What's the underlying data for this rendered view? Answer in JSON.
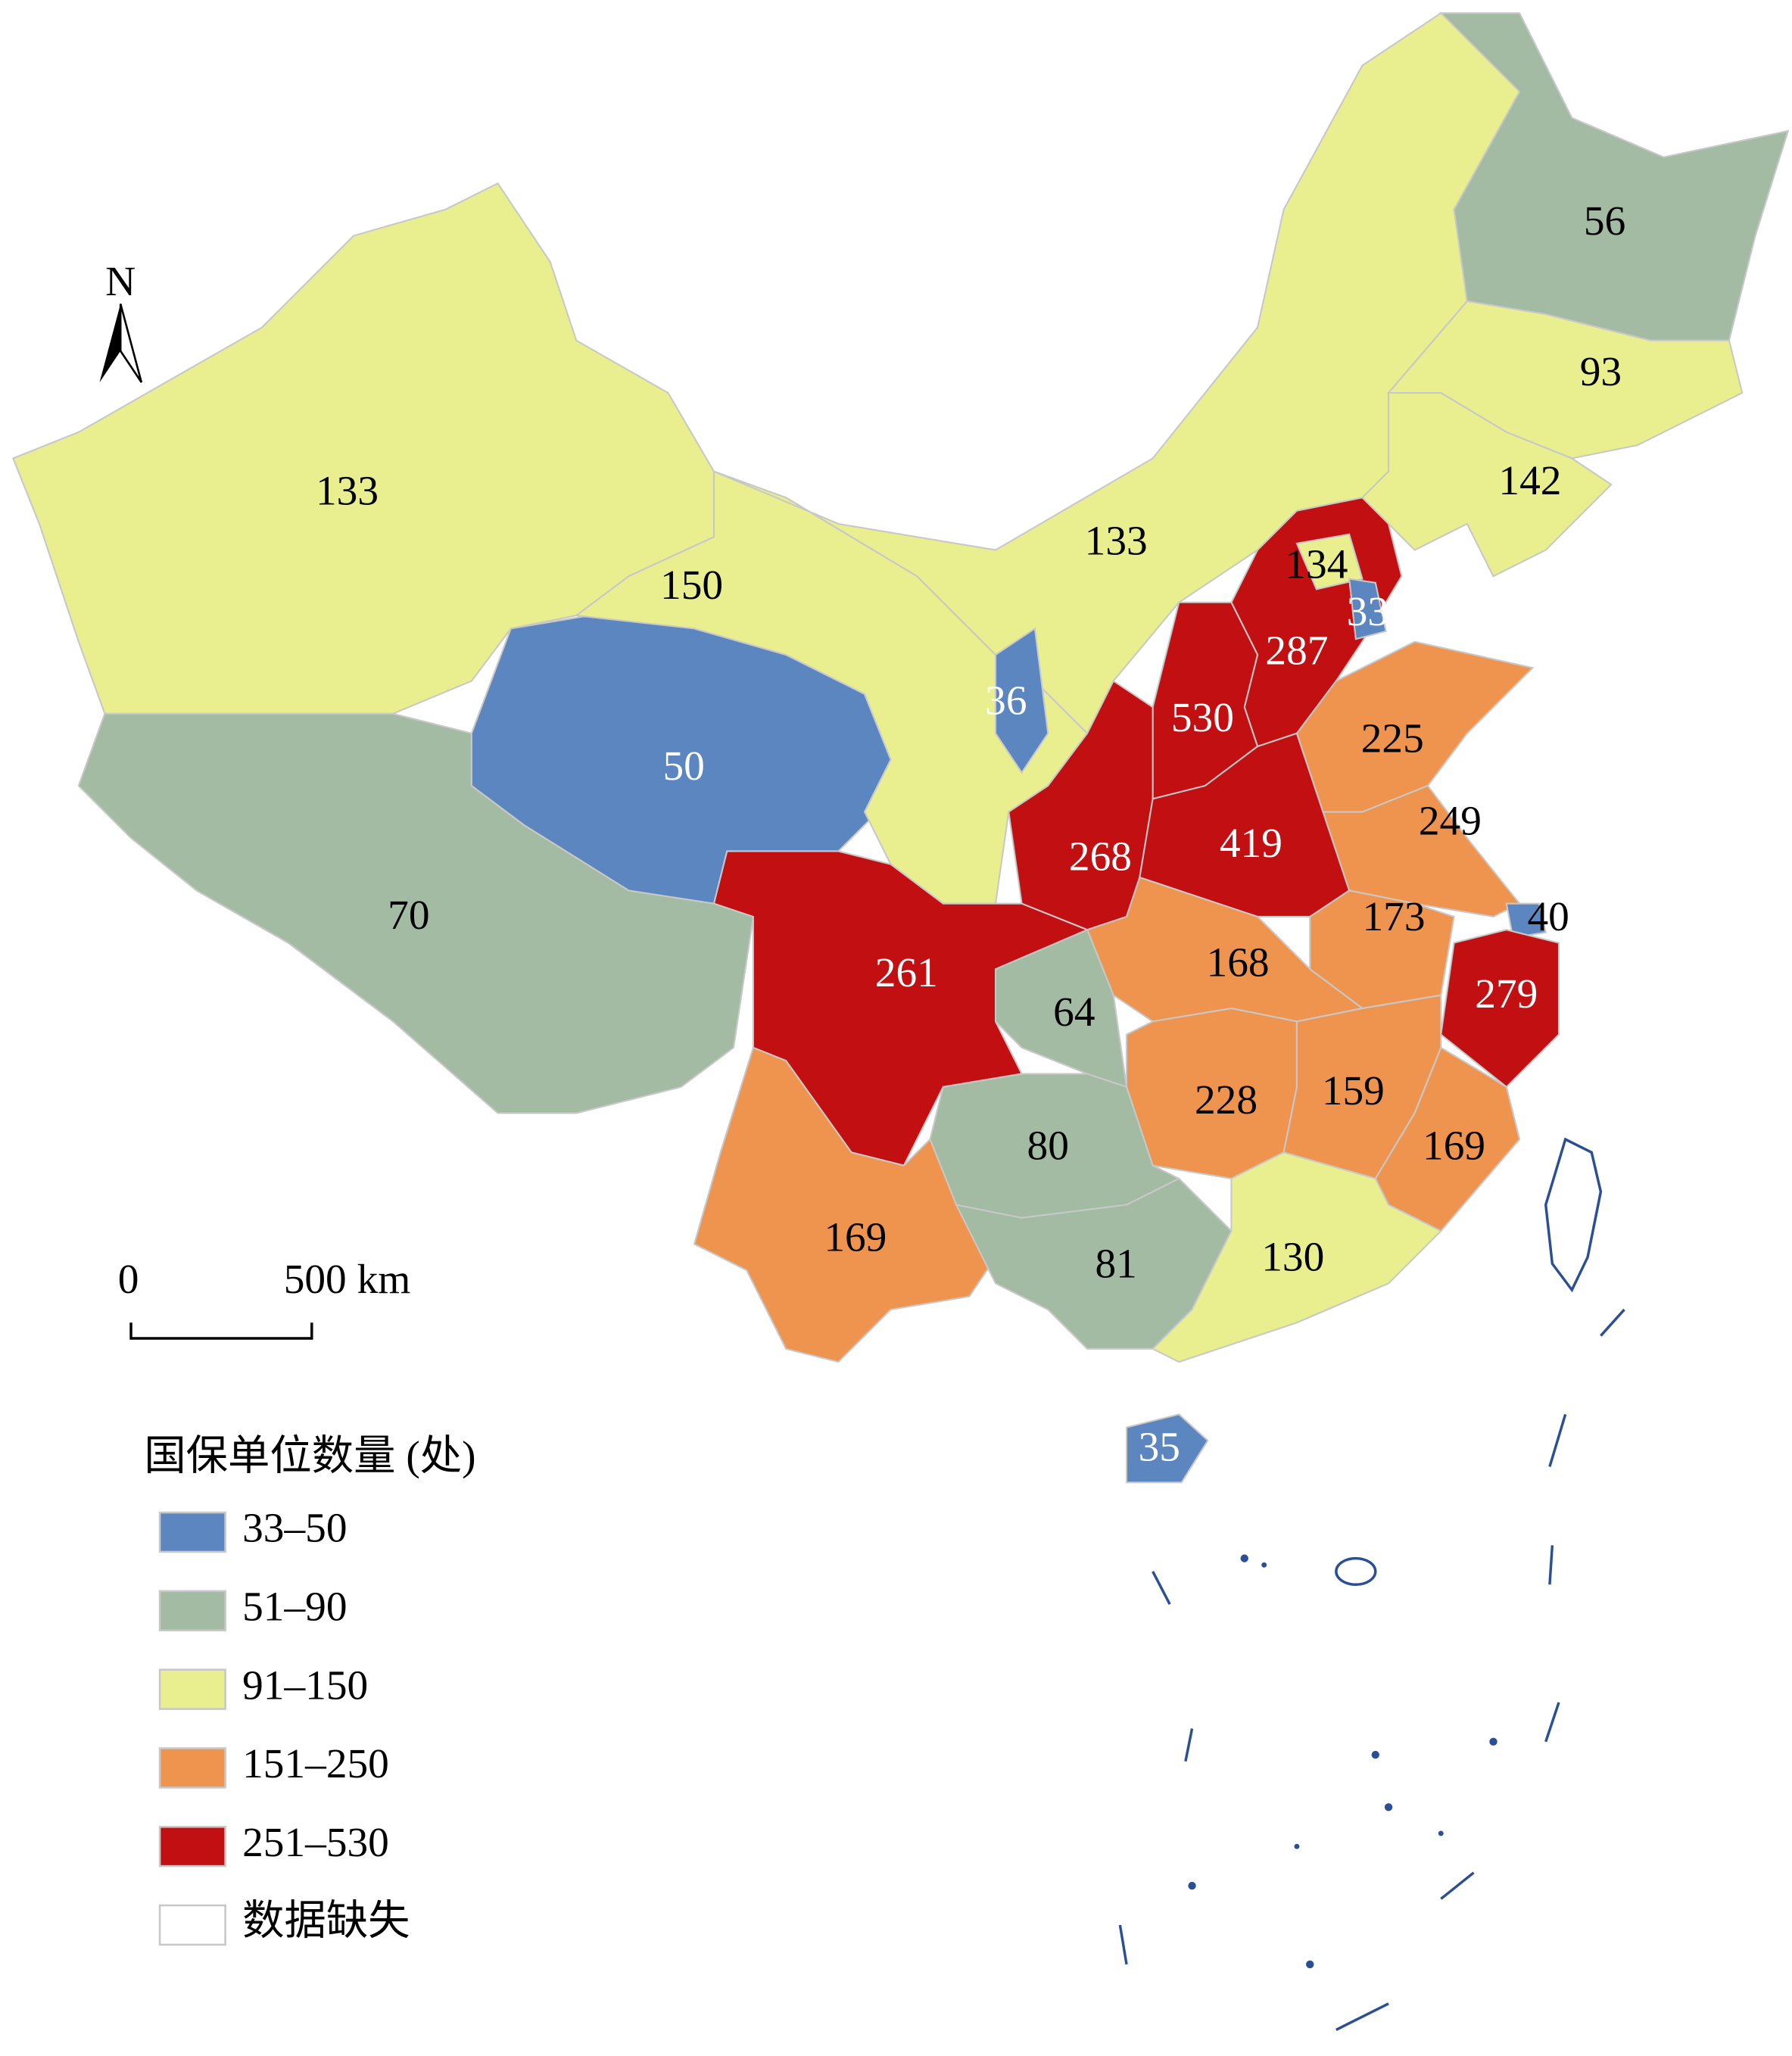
{
  "map": {
    "regions": [
      {
        "value": 133,
        "color": "#e9ef8f",
        "text_color": "#000000"
      },
      {
        "value": 70,
        "color": "#a2bba2",
        "text_color": "#000000"
      },
      {
        "value": 50,
        "color": "#5b86c0",
        "text_color": "#ffffff"
      },
      {
        "value": 150,
        "color": "#e9ef8f",
        "text_color": "#000000"
      },
      {
        "value": 133,
        "color": "#e9ef8f",
        "text_color": "#000000"
      },
      {
        "value": 56,
        "color": "#a2bba2",
        "text_color": "#000000"
      },
      {
        "value": 93,
        "color": "#e9ef8f",
        "text_color": "#000000"
      },
      {
        "value": 142,
        "color": "#e9ef8f",
        "text_color": "#000000"
      },
      {
        "value": 287,
        "color": "#c20f12",
        "text_color": "#ffffff"
      },
      {
        "value": 134,
        "color": "#e9ef8f",
        "text_color": "#000000"
      },
      {
        "value": 33,
        "color": "#5b86c0",
        "text_color": "#ffffff"
      },
      {
        "value": 530,
        "color": "#c20f12",
        "text_color": "#ffffff"
      },
      {
        "value": 268,
        "color": "#c20f12",
        "text_color": "#ffffff"
      },
      {
        "value": 36,
        "color": "#5b86c0",
        "text_color": "#ffffff"
      },
      {
        "value": 419,
        "color": "#c20f12",
        "text_color": "#ffffff"
      },
      {
        "value": 225,
        "color": "#ef944f",
        "text_color": "#000000"
      },
      {
        "value": 249,
        "color": "#ef944f",
        "text_color": "#000000"
      },
      {
        "value": 173,
        "color": "#ef944f",
        "text_color": "#000000"
      },
      {
        "value": 40,
        "color": "#5b86c0",
        "text_color": "#000000"
      },
      {
        "value": 279,
        "color": "#c20f12",
        "text_color": "#ffffff"
      },
      {
        "value": 168,
        "color": "#ef944f",
        "text_color": "#000000"
      },
      {
        "value": 64,
        "color": "#a2bba2",
        "text_color": "#000000"
      },
      {
        "value": 261,
        "color": "#c20f12",
        "text_color": "#ffffff"
      },
      {
        "value": 228,
        "color": "#ef944f",
        "text_color": "#000000"
      },
      {
        "value": 159,
        "color": "#ef944f",
        "text_color": "#000000"
      },
      {
        "value": 169,
        "color": "#ef944f",
        "text_color": "#000000"
      },
      {
        "value": 80,
        "color": "#a2bba2",
        "text_color": "#000000"
      },
      {
        "value": 169,
        "color": "#ef944f",
        "text_color": "#000000"
      },
      {
        "value": 81,
        "color": "#a2bba2",
        "text_color": "#000000"
      },
      {
        "value": 130,
        "color": "#e9ef8f",
        "text_color": "#000000"
      },
      {
        "value": 35,
        "color": "#5b86c0",
        "text_color": "#ffffff"
      }
    ],
    "legend": {
      "title": "国保单位数量 (处)",
      "items": [
        {
          "label": "33–50",
          "color": "#5b86c0"
        },
        {
          "label": "51–90",
          "color": "#a2bba2"
        },
        {
          "label": "91–150",
          "color": "#e9ef8f"
        },
        {
          "label": "151–250",
          "color": "#ef944f"
        },
        {
          "label": "251–530",
          "color": "#c20f12"
        },
        {
          "label": "数据缺失",
          "color": "#ffffff"
        }
      ]
    },
    "scale_bar": {
      "start": "0",
      "end": "500 km"
    },
    "north": "N"
  }
}
